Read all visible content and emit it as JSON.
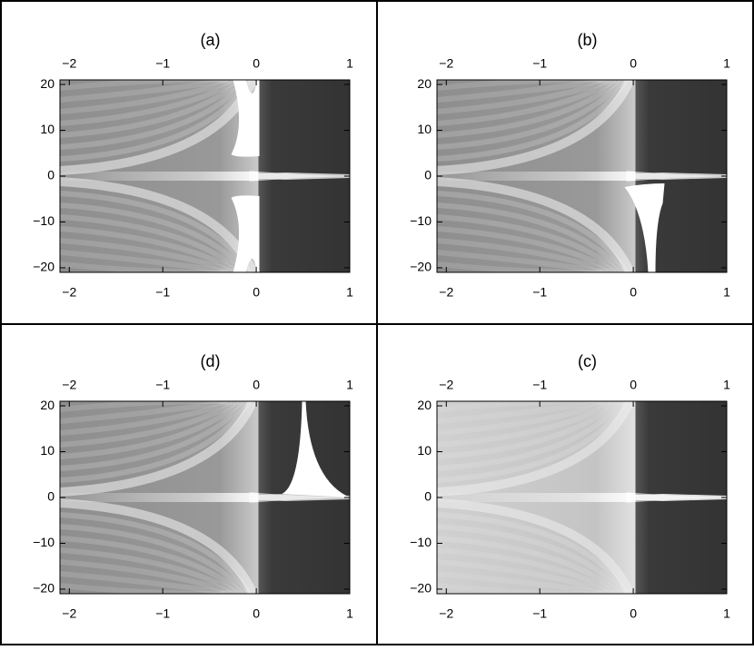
{
  "chart_data": [
    {
      "type": "density",
      "title": "(a)",
      "xlim": [
        -2.1,
        1
      ],
      "ylim": [
        -21,
        21
      ],
      "xticks": [
        {
          "value": -2,
          "label": "−2"
        },
        {
          "value": -1,
          "label": "−1"
        },
        0,
        1
      ],
      "yticks": [
        {
          "value": -20,
          "label": "−20"
        },
        {
          "value": -10,
          "label": "−10"
        },
        0,
        10,
        20
      ]
    },
    {
      "type": "density",
      "title": "(b)",
      "xlim": [
        -2.1,
        1
      ],
      "ylim": [
        -21,
        21
      ],
      "xticks": [
        {
          "value": -2,
          "label": "−2"
        },
        {
          "value": -1,
          "label": "−1"
        },
        0,
        1
      ],
      "yticks": [
        {
          "value": -20,
          "label": "−20"
        },
        {
          "value": -10,
          "label": "−10"
        },
        0,
        10,
        20
      ]
    },
    {
      "type": "density",
      "title": "(d)",
      "xlim": [
        -2.1,
        1
      ],
      "ylim": [
        -21,
        21
      ],
      "xticks": [
        {
          "value": -2,
          "label": "−2"
        },
        {
          "value": -1,
          "label": "−1"
        },
        0,
        1
      ],
      "yticks": [
        {
          "value": -20,
          "label": "−20"
        },
        {
          "value": -10,
          "label": "−10"
        },
        0,
        10,
        20
      ]
    },
    {
      "type": "density",
      "title": "(c)",
      "xlim": [
        -2.1,
        1
      ],
      "ylim": [
        -21,
        21
      ],
      "xticks": [
        {
          "value": -2,
          "label": "−2"
        },
        {
          "value": -1,
          "label": "−1"
        },
        0,
        1
      ],
      "yticks": [
        {
          "value": -20,
          "label": "−20"
        },
        {
          "value": -10,
          "label": "−10"
        },
        0,
        10,
        20
      ]
    }
  ]
}
